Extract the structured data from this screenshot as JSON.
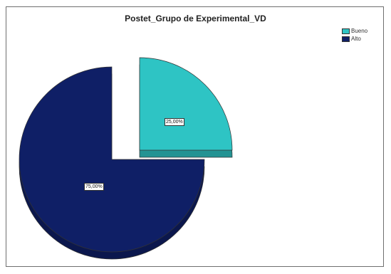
{
  "chart_data": {
    "type": "pie",
    "title": "Postet_Grupo de Experimental_VD",
    "categories": [
      "Bueno",
      "Alto"
    ],
    "values": [
      25.0,
      75.0
    ],
    "labels": [
      "25,00%",
      "75,00%"
    ],
    "colors": [
      "#2ec4c4",
      "#0f1f66"
    ],
    "legend_position": "top-right",
    "exploded": [
      "Bueno"
    ]
  }
}
